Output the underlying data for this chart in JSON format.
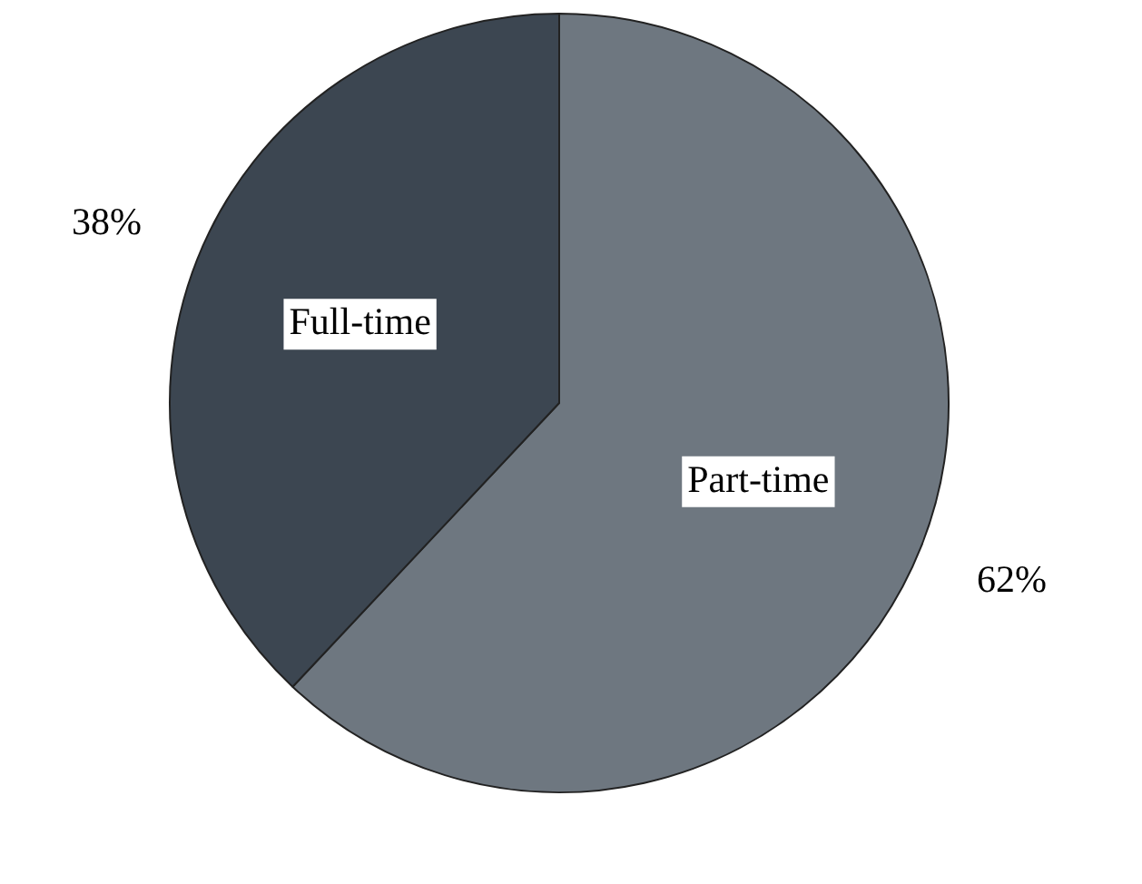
{
  "chart_data": {
    "type": "pie",
    "categories": [
      "Part-time",
      "Full-time"
    ],
    "values": [
      62,
      38
    ],
    "value_labels": [
      "62%",
      "38%"
    ],
    "colors": [
      "#6e7780",
      "#3c4651"
    ],
    "legend": false
  }
}
